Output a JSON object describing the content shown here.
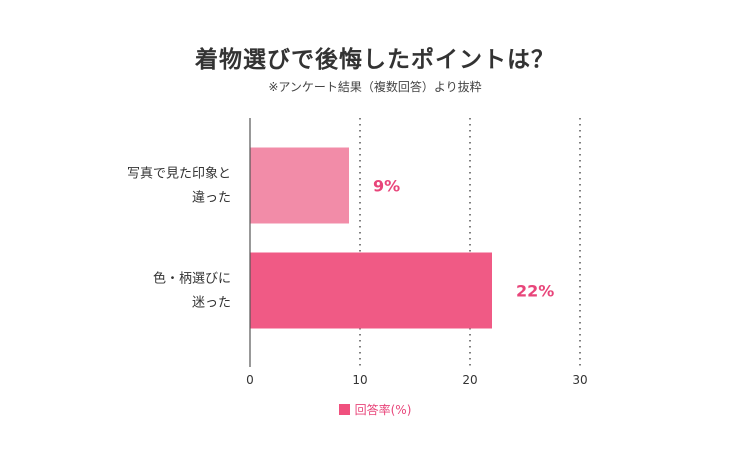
{
  "chart_data": {
    "type": "bar",
    "orientation": "horizontal",
    "title": "着物選びで後悔したポイントは？",
    "subtitle": "※アンケート結果（複数回答）より抜粋",
    "categories": [
      [
        "写真で見た印象と",
        "違った"
      ],
      [
        "色・柄選びに",
        "迷った"
      ]
    ],
    "series": [
      {
        "name": "回答率(%)",
        "values": [
          9,
          22
        ],
        "data_labels": [
          "9%",
          "22%"
        ],
        "colors": [
          "#f28ca8",
          "#f05a85"
        ]
      }
    ],
    "xlim": [
      0,
      30
    ],
    "xticks": [
      0,
      10,
      20,
      30
    ],
    "grid": true,
    "legend_position": "bottom"
  },
  "colors": {
    "label": "#e8457a",
    "axis": "#555555",
    "grid": "#555555"
  }
}
